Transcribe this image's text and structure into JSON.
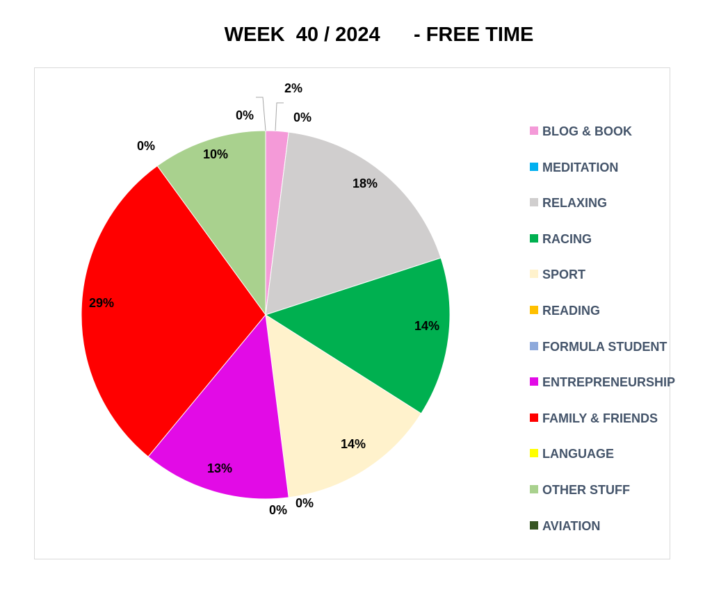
{
  "chart_data": {
    "type": "pie",
    "title": "WEEK  40 / 2024      - FREE TIME",
    "legend_position": "right",
    "slices": [
      {
        "label": "BLOG & BOOK",
        "value": 2,
        "display": "2%",
        "color": "#f49ad8"
      },
      {
        "label": "MEDITATION",
        "value": 0,
        "display": "0%",
        "color": "#00b0f0"
      },
      {
        "label": "RELAXING",
        "value": 18,
        "display": "18%",
        "color": "#d0cece"
      },
      {
        "label": "RACING",
        "value": 14,
        "display": "14%",
        "color": "#00b050"
      },
      {
        "label": "SPORT",
        "value": 14,
        "display": "14%",
        "color": "#fff2cc"
      },
      {
        "label": "READING",
        "value": 0,
        "display": "0%",
        "color": "#ffc000"
      },
      {
        "label": "FORMULA STUDENT",
        "value": 0,
        "display": "0%",
        "color": "#8ea9db"
      },
      {
        "label": "ENTREPRENEURSHIP",
        "value": 13,
        "display": "13%",
        "color": "#e20be6"
      },
      {
        "label": "FAMILY & FRIENDS",
        "value": 29,
        "display": "29%",
        "color": "#ff0000"
      },
      {
        "label": "LANGUAGE",
        "value": 0,
        "display": "0%",
        "color": "#ffff00"
      },
      {
        "label": "OTHER STUFF",
        "value": 10,
        "display": "10%",
        "color": "#a9d18e"
      },
      {
        "label": "AVIATION",
        "value": 0,
        "display": "0%",
        "color": "#375623"
      }
    ]
  }
}
